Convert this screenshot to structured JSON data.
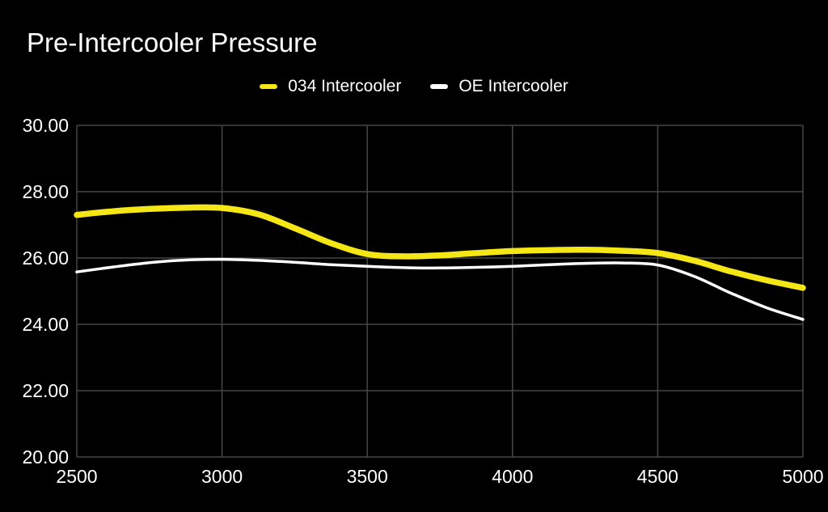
{
  "page": {
    "background_color": "#000000",
    "text_color": "#ffffff",
    "grid_color": "#474747"
  },
  "chart_data": {
    "type": "line",
    "title": "Pre-Intercooler Pressure",
    "xlabel": "",
    "ylabel": "",
    "xlim": [
      2500,
      5000
    ],
    "ylim": [
      20,
      30
    ],
    "xticks": [
      "2500",
      "3000",
      "3500",
      "4000",
      "4500",
      "5000"
    ],
    "yticks": [
      "30.00",
      "28.00",
      "26.00",
      "24.00",
      "22.00",
      "20.00"
    ],
    "grid": true,
    "legend_position": "top-center",
    "x": [
      2500,
      2625,
      2750,
      2875,
      3000,
      3125,
      3250,
      3375,
      3500,
      3625,
      3750,
      3875,
      4000,
      4125,
      4250,
      4375,
      4500,
      4625,
      4750,
      4875,
      5000
    ],
    "series": [
      {
        "name": "034 Intercooler",
        "color": "#f5e616",
        "line_width": 7.5,
        "values": [
          27.3,
          27.41,
          27.48,
          27.52,
          27.51,
          27.32,
          26.9,
          26.45,
          26.12,
          26.05,
          26.08,
          26.15,
          26.21,
          26.24,
          26.25,
          26.22,
          26.15,
          25.92,
          25.6,
          25.33,
          25.1
        ]
      },
      {
        "name": "OE Intercooler",
        "color": "#ffffff",
        "line_width": 3.5,
        "values": [
          25.58,
          25.73,
          25.86,
          25.94,
          25.96,
          25.93,
          25.87,
          25.8,
          25.75,
          25.71,
          25.7,
          25.72,
          25.75,
          25.8,
          25.84,
          25.85,
          25.79,
          25.45,
          24.95,
          24.5,
          24.15
        ]
      }
    ]
  }
}
